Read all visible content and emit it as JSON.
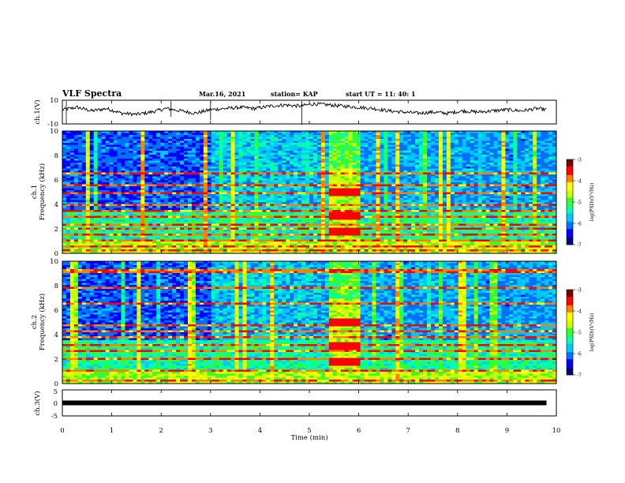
{
  "header": {
    "title": "VLF Spectra",
    "date": "Mar.16, 2021",
    "station": "station= KAP",
    "start": "start  UT =   11: 40: 1"
  },
  "colors": {
    "spectrum": [
      "#00007a",
      "#0000ff",
      "#0070ff",
      "#00c8ff",
      "#00ffb0",
      "#30ff30",
      "#c8ff00",
      "#ffff00",
      "#ff8000",
      "#ff0000",
      "#7a0000"
    ],
    "waveform": "#000000"
  },
  "chart_data": [
    {
      "type": "line",
      "name": "ch1-waveform",
      "ylabel": "ch.1(V)",
      "xlim": [
        0,
        10
      ],
      "ylim": [
        -10,
        10
      ],
      "yticks": [
        "10",
        "-10"
      ],
      "x": [
        0,
        0.3,
        0.6,
        0.9,
        1.2,
        1.5,
        1.8,
        2.1,
        2.4,
        2.7,
        3.0,
        3.3,
        3.6,
        3.9,
        4.2,
        4.5,
        4.8,
        5.1,
        5.4,
        5.7,
        6.0,
        6.3,
        6.6,
        6.9,
        7.2,
        7.5,
        7.8,
        8.1,
        8.4,
        8.7,
        9.0,
        9.3,
        9.6,
        9.8
      ],
      "y": [
        2,
        4,
        1,
        3,
        -1,
        -2,
        0,
        3,
        1,
        -1,
        2,
        3,
        4,
        3,
        5,
        6,
        5,
        7,
        6,
        5,
        4,
        3,
        1,
        0,
        -1,
        0,
        -1,
        1,
        0,
        1,
        2,
        1,
        3,
        2
      ]
    },
    {
      "type": "heatmap",
      "name": "ch1-spectrogram",
      "ylabel": "ch.1",
      "ylabel2": "Frequency (kHz)",
      "xlim": [
        0,
        10
      ],
      "ylim": [
        0,
        10
      ],
      "yticks": [
        "0",
        "2",
        "4",
        "6",
        "8",
        "10"
      ],
      "colorbar": {
        "label": "log(PSD)(V²/Hz)",
        "ticks": [
          "-3",
          "-4",
          "-5",
          "-6",
          "-7"
        ],
        "range": [
          -7,
          -3
        ]
      },
      "bright_interval_min": [
        5.4,
        6.0
      ],
      "quiet_band_khz": [
        3.5,
        10
      ],
      "bright_lines_khz": [
        0.2,
        0.5,
        1.0,
        1.5,
        2.0,
        2.4,
        3.0,
        3.5,
        4.0,
        4.9,
        5.5,
        6.5
      ]
    },
    {
      "type": "heatmap",
      "name": "ch2-spectrogram",
      "ylabel": "ch.2",
      "ylabel2": "Frequency (kHz)",
      "xlim": [
        0,
        10
      ],
      "ylim": [
        0,
        10
      ],
      "yticks": [
        "0",
        "2",
        "4",
        "6",
        "8",
        "10"
      ],
      "colorbar": {
        "label": "log(PSD)(V²/Hz)",
        "ticks": [
          "-3",
          "-4",
          "-5",
          "-6",
          "-7"
        ],
        "range": [
          -7,
          -3
        ]
      },
      "bright_interval_min": [
        5.4,
        6.0
      ],
      "quiet_band_khz": [
        3.5,
        10
      ],
      "bright_lines_khz": [
        0.3,
        1.0,
        2.0,
        2.6,
        3.1,
        3.8,
        4.3,
        4.8,
        6.5,
        7.8,
        9.2
      ]
    },
    {
      "type": "line",
      "name": "ch3-waveform",
      "ylabel": "ch.3(V)",
      "xlabel": "Time  (min)",
      "xlim": [
        0,
        10
      ],
      "ylim": [
        -5,
        5
      ],
      "yticks": [
        "5",
        "0",
        "-5"
      ],
      "xticks": [
        "0",
        "1",
        "2",
        "3",
        "4",
        "5",
        "6",
        "7",
        "8",
        "9",
        "10"
      ],
      "x": [
        0,
        9.8
      ],
      "y": [
        0,
        0
      ]
    }
  ]
}
